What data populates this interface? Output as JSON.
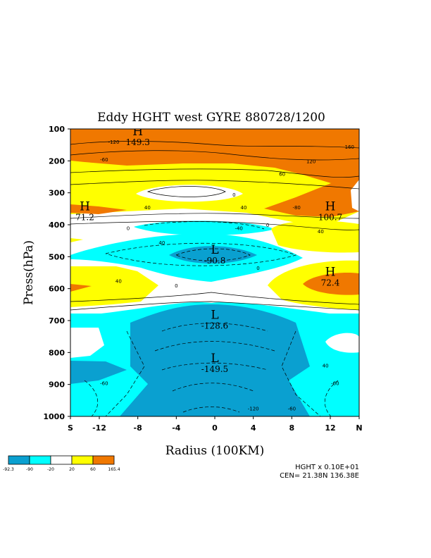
{
  "chart_data": {
    "type": "contour",
    "title": "Eddy HGHT west GYRE 880728/1200",
    "xlabel": "Radius (100KM)",
    "ylabel": "Press(hPa)",
    "x_ticks": [
      "S",
      "-12",
      "-8",
      "-4",
      "0",
      "4",
      "8",
      "12",
      "N"
    ],
    "x_tick_values": [
      -15,
      -12,
      -8,
      -4,
      0,
      4,
      8,
      12,
      15
    ],
    "y_ticks": [
      "100",
      "200",
      "300",
      "400",
      "500",
      "600",
      "700",
      "800",
      "900",
      "1000"
    ],
    "y_tick_values": [
      100,
      200,
      300,
      400,
      500,
      600,
      700,
      800,
      900,
      1000
    ],
    "xlim": [
      -15,
      15
    ],
    "ylim": [
      1000,
      100
    ],
    "extrema": [
      {
        "type": "H",
        "value": "149.3",
        "x": -8,
        "y": 120
      },
      {
        "type": "H",
        "value": "71.2",
        "x": -13.5,
        "y": 355
      },
      {
        "type": "H",
        "value": "100.7",
        "x": 12,
        "y": 355
      },
      {
        "type": "L",
        "value": "-90.8",
        "x": 0,
        "y": 490
      },
      {
        "type": "H",
        "value": "72.4",
        "x": 12,
        "y": 560
      },
      {
        "type": "L",
        "value": "-128.6",
        "x": 0,
        "y": 695
      },
      {
        "type": "L",
        "value": "-149.5",
        "x": 0,
        "y": 830
      }
    ],
    "contour_labels": [
      {
        "text": "-120",
        "x": -10.5,
        "y": 140
      },
      {
        "text": "-60",
        "x": -11.5,
        "y": 195
      },
      {
        "text": "120",
        "x": 10,
        "y": 200
      },
      {
        "text": "160",
        "x": 14,
        "y": 155
      },
      {
        "text": "60",
        "x": 7,
        "y": 240
      },
      {
        "text": "0",
        "x": 2,
        "y": 305
      },
      {
        "text": "40",
        "x": -7,
        "y": 345
      },
      {
        "text": "40",
        "x": 3,
        "y": 345
      },
      {
        "text": "-80",
        "x": 8.5,
        "y": 345
      },
      {
        "text": "0",
        "x": -9,
        "y": 410
      },
      {
        "text": "-40",
        "x": 2.5,
        "y": 410
      },
      {
        "text": "0",
        "x": 5.5,
        "y": 400
      },
      {
        "text": "40",
        "x": 11,
        "y": 420
      },
      {
        "text": "40",
        "x": -5.5,
        "y": 455
      },
      {
        "text": "0",
        "x": 4.5,
        "y": 535
      },
      {
        "text": "40",
        "x": -10,
        "y": 575
      },
      {
        "text": "0",
        "x": -4,
        "y": 590
      },
      {
        "text": "40",
        "x": 11.5,
        "y": 840
      },
      {
        "text": "-60",
        "x": -11.5,
        "y": 895
      },
      {
        "text": "-60",
        "x": 12.5,
        "y": 895
      },
      {
        "text": "-120",
        "x": 4,
        "y": 975
      },
      {
        "text": "-60",
        "x": 8,
        "y": 975
      }
    ],
    "colorbar": {
      "levels": [
        "-92.3",
        "-90",
        "-20",
        "20",
        "60",
        "165.4"
      ],
      "colors": [
        "#0aa0d0",
        "#00ffff",
        "#ffffff",
        "#ffff00",
        "#f07800"
      ]
    },
    "footer": {
      "scale": "HGHT x  0.10E+01",
      "center": "CEN= 21.38N  136.38E"
    }
  }
}
